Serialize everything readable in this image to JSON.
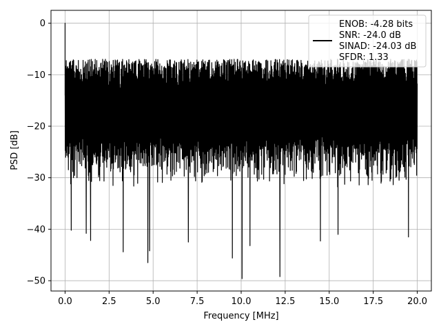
{
  "chart_data": {
    "type": "line",
    "title": "",
    "xlabel": "Frequency [MHz]",
    "ylabel": "PSD [dB]",
    "xlim": [
      -0.8,
      20.8
    ],
    "ylim": [
      -52,
      2.5
    ],
    "grid": true,
    "legend_placement": "upper-right",
    "x_ticks": [
      0.0,
      2.5,
      5.0,
      7.5,
      10.0,
      12.5,
      15.0,
      17.5,
      20.0
    ],
    "x_tick_labels": [
      "0.0",
      "2.5",
      "5.0",
      "7.5",
      "10.0",
      "12.5",
      "15.0",
      "17.5",
      "20.0"
    ],
    "y_ticks": [
      0,
      -10,
      -20,
      -30,
      -40,
      -50
    ],
    "y_tick_labels": [
      "0",
      "−10",
      "−20",
      "−30",
      "−40",
      "−50"
    ],
    "series_color": "#000000",
    "legend_lines": [
      "ENOB: -4.28 bits",
      "SNR: -24.0 dB",
      "SINAD: -24.03 dB",
      "SFDR: 1.33"
    ],
    "series": [
      {
        "name": "",
        "x_range": [
          0.0,
          20.0
        ],
        "noise_band": {
          "upper": [
            -13,
            -7
          ],
          "lower": [
            -32,
            -22
          ]
        },
        "peak": {
          "x": 0.0,
          "y": 0.0
        },
        "notable_minima": [
          {
            "x": 0.35,
            "y": -40.2
          },
          {
            "x": 1.2,
            "y": -40.8
          },
          {
            "x": 1.45,
            "y": -42.2
          },
          {
            "x": 3.3,
            "y": -44.4
          },
          {
            "x": 4.7,
            "y": -46.5
          },
          {
            "x": 4.8,
            "y": -44.2
          },
          {
            "x": 7.0,
            "y": -42.5
          },
          {
            "x": 9.5,
            "y": -45.6
          },
          {
            "x": 10.05,
            "y": -49.6
          },
          {
            "x": 10.5,
            "y": -43.2
          },
          {
            "x": 12.2,
            "y": -49.2
          },
          {
            "x": 14.5,
            "y": -42.3
          },
          {
            "x": 15.5,
            "y": -41.0
          },
          {
            "x": 19.5,
            "y": -41.5
          }
        ]
      }
    ]
  }
}
